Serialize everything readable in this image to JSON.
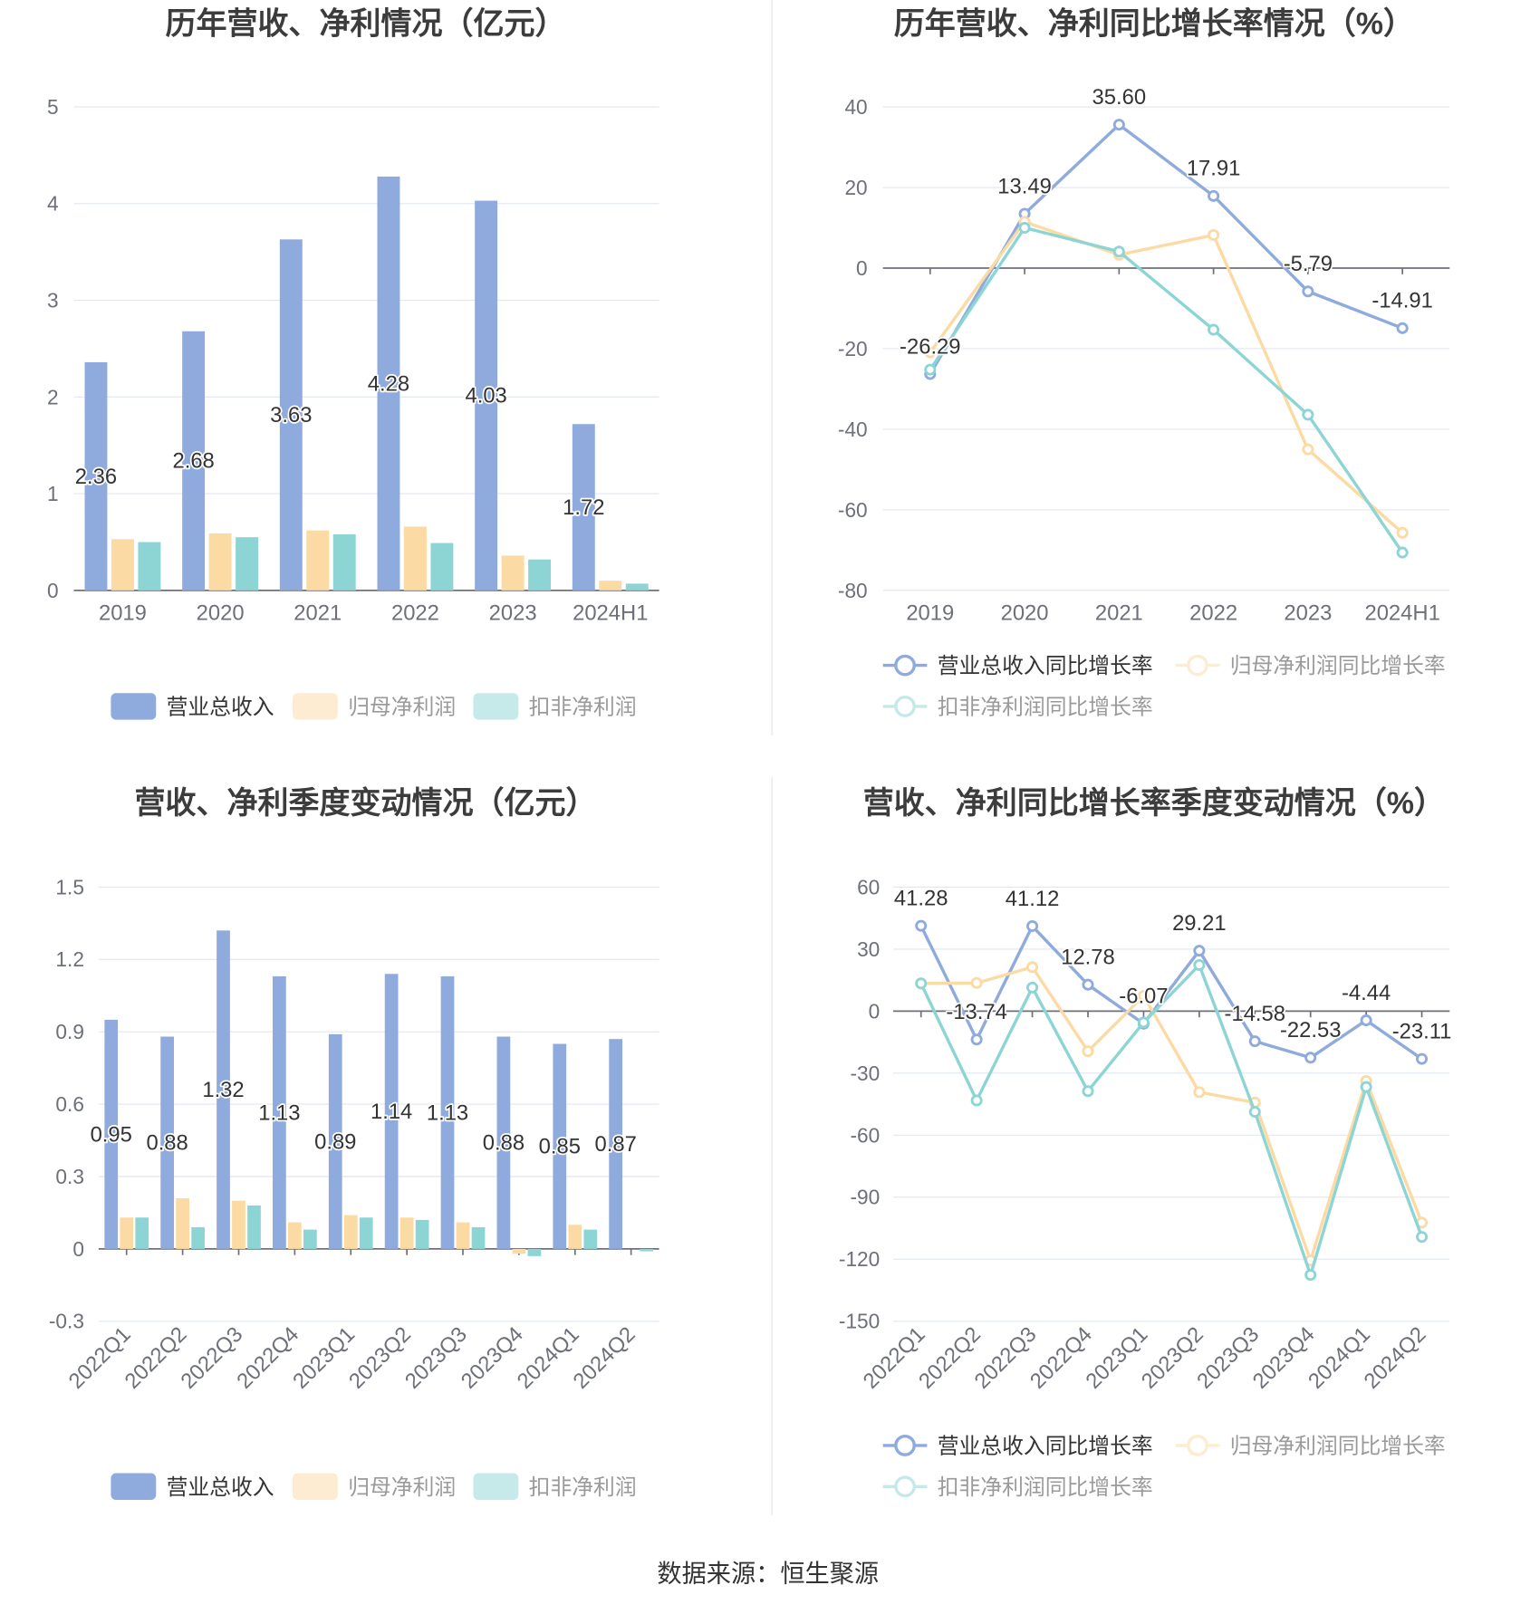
{
  "chart_data": [
    {
      "type": "bar",
      "title": "历年营收、净利情况（亿元）",
      "categories": [
        "2019",
        "2020",
        "2021",
        "2022",
        "2023",
        "2024H1"
      ],
      "ylim": [
        0,
        5
      ],
      "yticks": [
        0,
        1,
        2,
        3,
        4,
        5
      ],
      "series": [
        {
          "name": "营业总收入",
          "values": [
            2.36,
            2.68,
            3.63,
            4.28,
            4.03,
            1.72
          ],
          "color": "#8FAADC",
          "data_labels": true,
          "label_decimals": 2
        },
        {
          "name": "归母净利润",
          "values": [
            0.53,
            0.59,
            0.62,
            0.66,
            0.36,
            0.1
          ],
          "color": "#FCDAA3",
          "data_labels": false,
          "label_decimals": 2
        },
        {
          "name": "扣非净利润",
          "values": [
            0.5,
            0.55,
            0.58,
            0.49,
            0.32,
            0.07
          ],
          "color": "#8DD5D5",
          "data_labels": false,
          "label_decimals": 2
        }
      ]
    },
    {
      "type": "line",
      "title": "历年营收、净利同比增长率情况（%）",
      "categories": [
        "2019",
        "2020",
        "2021",
        "2022",
        "2023",
        "2024H1"
      ],
      "ylim": [
        -80,
        40
      ],
      "yticks": [
        -80,
        -60,
        -40,
        -20,
        0,
        20,
        40
      ],
      "series": [
        {
          "name": "营业总收入同比增长率",
          "values": [
            -26.29,
            13.49,
            35.6,
            17.91,
            -5.79,
            -14.91
          ],
          "color": "#8FAADC",
          "data_labels": true,
          "label_decimals": 2
        },
        {
          "name": "归母净利润同比增长率",
          "values": [
            -20.9,
            11.5,
            3.3,
            8.2,
            -45.0,
            -65.7
          ],
          "color": "#FCDAA3",
          "data_labels": false,
          "label_decimals": 2
        },
        {
          "name": "扣非净利润同比增长率",
          "values": [
            -25.2,
            10.0,
            4.1,
            -15.3,
            -36.4,
            -70.6
          ],
          "color": "#8DD5D5",
          "data_labels": false,
          "label_decimals": 2
        }
      ]
    },
    {
      "type": "bar",
      "title": "营收、净利季度变动情况（亿元）",
      "categories": [
        "2022Q1",
        "2022Q2",
        "2022Q3",
        "2022Q4",
        "2023Q1",
        "2023Q2",
        "2023Q3",
        "2023Q4",
        "2024Q1",
        "2024Q2"
      ],
      "ylim": [
        -0.3,
        1.5
      ],
      "yticks": [
        -0.3,
        0,
        0.3,
        0.6,
        0.9,
        1.2,
        1.5
      ],
      "series": [
        {
          "name": "营业总收入",
          "values": [
            0.95,
            0.88,
            1.32,
            1.13,
            0.89,
            1.14,
            1.13,
            0.88,
            0.85,
            0.87
          ],
          "color": "#8FAADC",
          "data_labels": true,
          "label_decimals": 2
        },
        {
          "name": "归母净利润",
          "values": [
            0.13,
            0.21,
            0.2,
            0.11,
            0.14,
            0.13,
            0.11,
            -0.02,
            0.1,
            0.0
          ],
          "color": "#FCDAA3",
          "data_labels": false,
          "label_decimals": 2
        },
        {
          "name": "扣非净利润",
          "values": [
            0.13,
            0.09,
            0.18,
            0.08,
            0.13,
            0.12,
            0.09,
            -0.03,
            0.08,
            -0.01
          ],
          "color": "#8DD5D5",
          "data_labels": false,
          "label_decimals": 2
        }
      ]
    },
    {
      "type": "line",
      "title": "营收、净利同比增长率季度变动情况（%）",
      "categories": [
        "2022Q1",
        "2022Q2",
        "2022Q3",
        "2022Q4",
        "2023Q1",
        "2023Q2",
        "2023Q3",
        "2023Q4",
        "2024Q1",
        "2024Q2"
      ],
      "ylim": [
        -150,
        60
      ],
      "yticks": [
        -150,
        -120,
        -90,
        -60,
        -30,
        0,
        30,
        60
      ],
      "series": [
        {
          "name": "营业总收入同比增长率",
          "values": [
            41.28,
            -13.74,
            41.12,
            12.78,
            -6.07,
            29.21,
            -14.58,
            -22.53,
            -4.44,
            -23.11
          ],
          "color": "#8FAADC",
          "data_labels": true,
          "label_decimals": 2
        },
        {
          "name": "归母净利润同比增长率",
          "values": [
            13.4,
            13.6,
            21.3,
            -19.4,
            7.4,
            -39.2,
            -44.2,
            -120.6,
            -33.8,
            -102.3
          ],
          "color": "#FCDAA3",
          "data_labels": false,
          "label_decimals": 2
        },
        {
          "name": "扣非净利润同比增长率",
          "values": [
            13.4,
            -43.2,
            11.4,
            -38.7,
            -5.5,
            22.3,
            -48.7,
            -127.6,
            -36.7,
            -109.2
          ],
          "color": "#8DD5D5",
          "data_labels": false,
          "label_decimals": 2
        }
      ]
    }
  ],
  "footer": {
    "source": "数据来源：恒生聚源"
  }
}
